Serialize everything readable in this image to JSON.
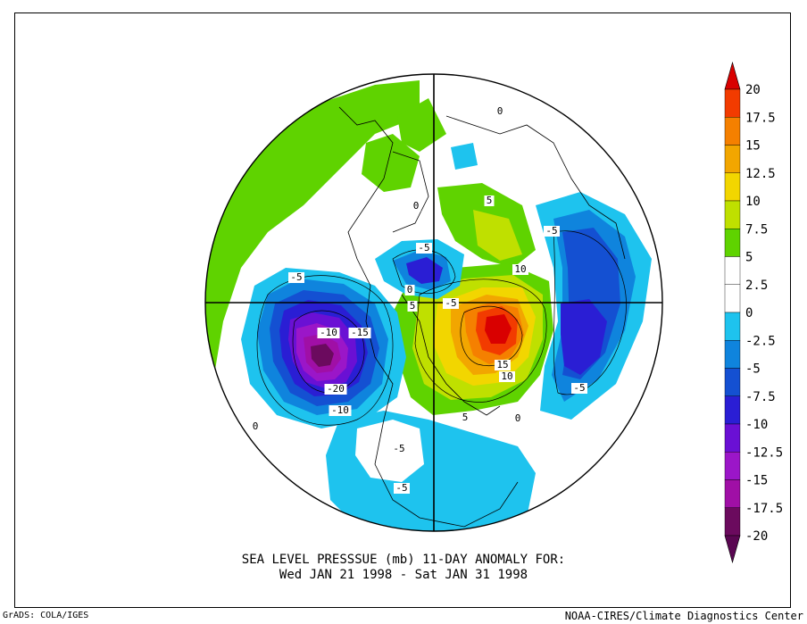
{
  "title_line1": "SEA LEVEL PRESSSUE (mb)   11-DAY ANOMALY FOR:",
  "title_line2": "Wed JAN 21 1998 - Sat JAN 31 1998",
  "credit_left": "GrADS: COLA/IGES",
  "credit_right": "NOAA-CIRES/Climate Diagnostics Center",
  "colorbar": {
    "levels": [
      {
        "value": "20",
        "color": "#d90000"
      },
      {
        "value": "17.5",
        "color": "#f23b00"
      },
      {
        "value": "15",
        "color": "#f58000"
      },
      {
        "value": "12.5",
        "color": "#f2a600"
      },
      {
        "value": "10",
        "color": "#f2d600"
      },
      {
        "value": "7.5",
        "color": "#bfe000"
      },
      {
        "value": "5",
        "color": "#5fd300"
      },
      {
        "value": "2.5",
        "color": "#ffffff"
      },
      {
        "value": "0",
        "color": "#ffffff"
      },
      {
        "value": "-2.5",
        "color": "#1ec3ee"
      },
      {
        "value": "-5",
        "color": "#0f84dd"
      },
      {
        "value": "-7.5",
        "color": "#1450d2"
      },
      {
        "value": "-10",
        "color": "#2a1ed4"
      },
      {
        "value": "-12.5",
        "color": "#6a10d4"
      },
      {
        "value": "-15",
        "color": "#9b16c8"
      },
      {
        "value": "-17.5",
        "color": "#a00fa6"
      },
      {
        "value": "-20",
        "color": "#6b0a5e"
      }
    ],
    "top_arrow_color": "#d90000",
    "bottom_arrow_color": "#5a0652"
  },
  "contour_labels": [
    "-5",
    "-5",
    "5",
    "-5",
    "10",
    "-5",
    "-10",
    "-15",
    "0",
    "5",
    "-20",
    "15",
    "10",
    "-10",
    "5",
    "0",
    "-5",
    "-5",
    "-5",
    "0",
    "0",
    "0"
  ]
}
